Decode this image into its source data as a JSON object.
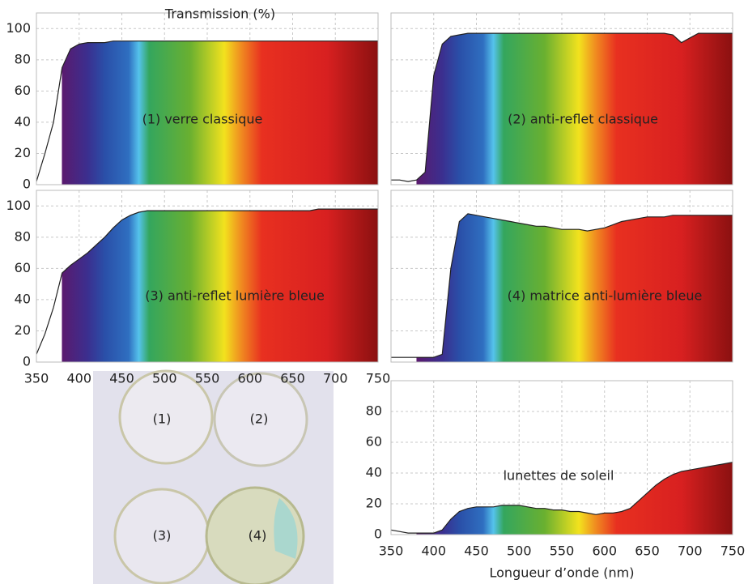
{
  "title": "Transmission (%)",
  "x_label": "Longueur d’onde (nm)",
  "photo_labels": [
    "(1)",
    "(2)",
    "(3)",
    "(4)"
  ],
  "chart_data": [
    {
      "type": "area",
      "annotation": "(1) verre classique",
      "color": "#222222",
      "x": [
        350,
        360,
        370,
        380,
        390,
        400,
        410,
        420,
        430,
        440,
        450,
        460,
        470,
        480,
        490,
        500,
        510,
        520,
        530,
        540,
        550,
        560,
        570,
        580,
        590,
        600,
        610,
        620,
        630,
        640,
        650,
        660,
        670,
        680,
        690,
        700,
        710,
        720,
        730,
        740,
        750
      ],
      "values": [
        2,
        20,
        40,
        75,
        87,
        90,
        91,
        91,
        91,
        92,
        92,
        92,
        92,
        92,
        92,
        92,
        92,
        92,
        92,
        92,
        92,
        92,
        92,
        92,
        92,
        92,
        92,
        92,
        92,
        92,
        92,
        92,
        92,
        92,
        92,
        92,
        92,
        92,
        92,
        92,
        92
      ],
      "xlim": [
        350,
        750
      ],
      "ylim": [
        0,
        110
      ],
      "xticks": [
        350,
        400,
        450,
        500,
        550,
        600,
        650,
        700,
        750
      ],
      "yticks": [
        0,
        20,
        40,
        60,
        80,
        100
      ],
      "grid": true
    },
    {
      "type": "area",
      "annotation": "(2) anti-reflet classique",
      "color": "#222222",
      "x": [
        350,
        360,
        370,
        380,
        390,
        400,
        410,
        420,
        430,
        440,
        450,
        460,
        470,
        480,
        490,
        500,
        510,
        520,
        530,
        540,
        550,
        560,
        570,
        580,
        590,
        600,
        610,
        620,
        630,
        640,
        650,
        660,
        670,
        680,
        690,
        700,
        710,
        720,
        730,
        740,
        750
      ],
      "values": [
        3,
        3,
        2,
        3,
        8,
        70,
        90,
        95,
        96,
        97,
        97,
        97,
        97,
        97,
        97,
        97,
        97,
        97,
        97,
        97,
        97,
        97,
        97,
        97,
        97,
        97,
        97,
        97,
        97,
        97,
        97,
        97,
        97,
        96,
        91,
        94,
        97,
        97,
        97,
        97,
        97
      ],
      "xlim": [
        350,
        750
      ],
      "ylim": [
        0,
        110
      ],
      "xticks": [
        350,
        400,
        450,
        500,
        550,
        600,
        650,
        700,
        750
      ],
      "yticks": [
        0,
        20,
        40,
        60,
        80,
        100
      ],
      "grid": true
    },
    {
      "type": "area",
      "annotation": "(3) anti-reflet lumière bleue",
      "color": "#222222",
      "x": [
        350,
        360,
        370,
        380,
        390,
        400,
        410,
        420,
        430,
        440,
        450,
        460,
        470,
        480,
        490,
        500,
        510,
        520,
        530,
        540,
        550,
        560,
        570,
        580,
        590,
        600,
        610,
        620,
        630,
        640,
        650,
        660,
        670,
        680,
        690,
        700,
        710,
        720,
        730,
        740,
        750
      ],
      "values": [
        5,
        18,
        35,
        57,
        62,
        66,
        70,
        75,
        80,
        86,
        91,
        94,
        96,
        97,
        97,
        97,
        97,
        97,
        97,
        97,
        97,
        97,
        97,
        97,
        97,
        97,
        97,
        97,
        97,
        97,
        97,
        97,
        97,
        98,
        98,
        98,
        98,
        98,
        98,
        98,
        98
      ],
      "xlim": [
        350,
        750
      ],
      "ylim": [
        0,
        110
      ],
      "xticks": [
        350,
        400,
        450,
        500,
        550,
        600,
        650,
        700,
        750
      ],
      "yticks": [
        0,
        20,
        40,
        60,
        80,
        100
      ],
      "grid": true
    },
    {
      "type": "area",
      "annotation": "(4) matrice anti-lumière bleue",
      "color": "#222222",
      "x": [
        350,
        360,
        370,
        380,
        390,
        400,
        410,
        420,
        430,
        440,
        450,
        460,
        470,
        480,
        490,
        500,
        510,
        520,
        530,
        540,
        550,
        560,
        570,
        580,
        590,
        600,
        610,
        620,
        630,
        640,
        650,
        660,
        670,
        680,
        690,
        700,
        710,
        720,
        730,
        740,
        750
      ],
      "values": [
        3,
        3,
        3,
        3,
        3,
        3,
        5,
        60,
        90,
        95,
        94,
        93,
        92,
        91,
        90,
        89,
        88,
        87,
        87,
        86,
        85,
        85,
        85,
        84,
        85,
        86,
        88,
        90,
        91,
        92,
        93,
        93,
        93,
        94,
        94,
        94,
        94,
        94,
        94,
        94,
        94
      ],
      "xlim": [
        350,
        750
      ],
      "ylim": [
        0,
        110
      ],
      "xticks": [
        350,
        400,
        450,
        500,
        550,
        600,
        650,
        700,
        750
      ],
      "yticks": [
        0,
        20,
        40,
        60,
        80,
        100
      ],
      "grid": true
    },
    {
      "type": "area",
      "annotation": "lunettes de soleil",
      "color": "#222222",
      "x": [
        350,
        360,
        370,
        380,
        390,
        400,
        410,
        420,
        430,
        440,
        450,
        460,
        470,
        480,
        490,
        500,
        510,
        520,
        530,
        540,
        550,
        560,
        570,
        580,
        590,
        600,
        610,
        620,
        630,
        640,
        650,
        660,
        670,
        680,
        690,
        700,
        710,
        720,
        730,
        740,
        750
      ],
      "values": [
        3,
        2,
        1,
        1,
        1,
        1,
        3,
        10,
        15,
        17,
        18,
        18,
        18,
        19,
        19,
        19,
        18,
        17,
        17,
        16,
        16,
        15,
        15,
        14,
        13,
        14,
        14,
        15,
        17,
        22,
        27,
        32,
        36,
        39,
        41,
        42,
        43,
        44,
        45,
        46,
        47
      ],
      "xlim": [
        350,
        750
      ],
      "ylim": [
        0,
        100
      ],
      "xticks": [
        350,
        400,
        450,
        500,
        550,
        600,
        650,
        700,
        750
      ],
      "yticks": [
        0,
        20,
        40,
        60,
        80
      ],
      "grid": true
    }
  ]
}
